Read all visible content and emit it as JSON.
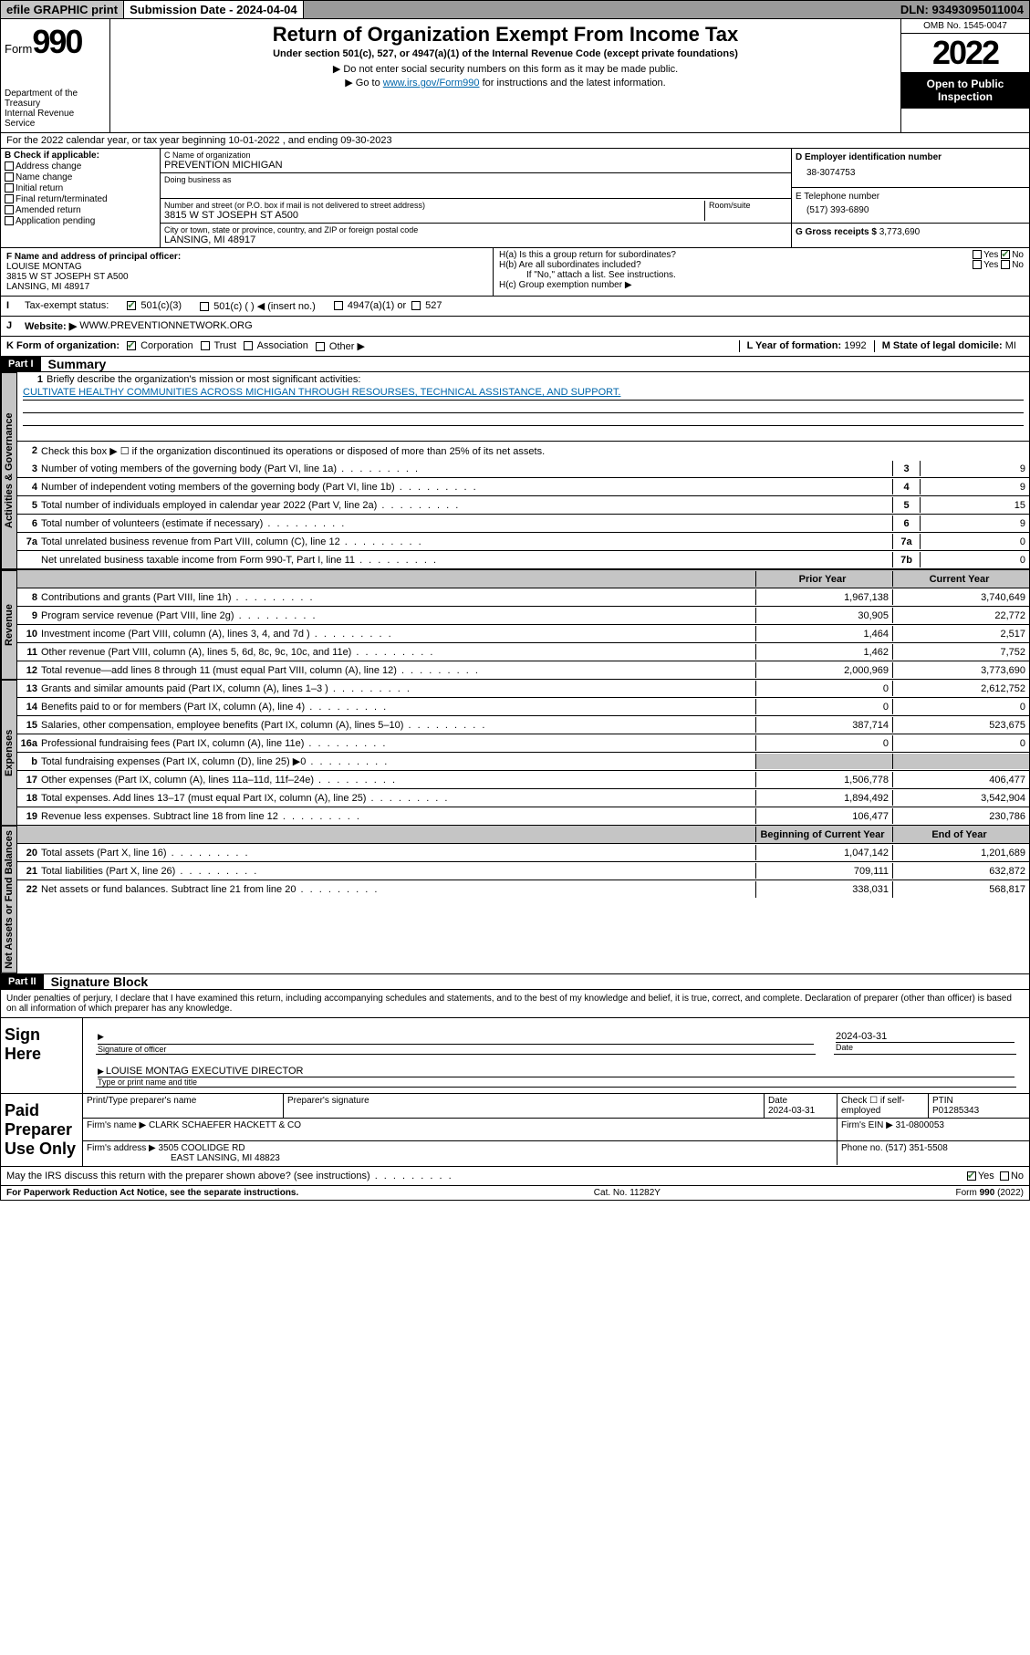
{
  "topbar": {
    "efile": "efile GRAPHIC print",
    "sub_label": "Submission Date - ",
    "sub_date": "2024-04-04",
    "dln_label": "DLN: ",
    "dln": "93493095011004"
  },
  "header": {
    "form_word": "Form",
    "form_num": "990",
    "dept": "Department of the Treasury",
    "irs": "Internal Revenue Service",
    "title": "Return of Organization Exempt From Income Tax",
    "sub1": "Under section 501(c), 527, or 4947(a)(1) of the Internal Revenue Code (except private foundations)",
    "sub2": "▶ Do not enter social security numbers on this form as it may be made public.",
    "sub3_pre": "▶ Go to ",
    "sub3_link": "www.irs.gov/Form990",
    "sub3_post": " for instructions and the latest information.",
    "omb": "OMB No. 1545-0047",
    "year": "2022",
    "open": "Open to Public Inspection"
  },
  "lineA": "For the 2022 calendar year, or tax year beginning 10-01-2022   , and ending 09-30-2023",
  "B": {
    "hdr": "B Check if applicable:",
    "opts": [
      "Address change",
      "Name change",
      "Initial return",
      "Final return/terminated",
      "Amended return",
      "Application pending"
    ]
  },
  "C": {
    "name_lbl": "C Name of organization",
    "name": "PREVENTION MICHIGAN",
    "dba_lbl": "Doing business as",
    "dba": "",
    "street_lbl": "Number and street (or P.O. box if mail is not delivered to street address)",
    "room_lbl": "Room/suite",
    "street": "3815 W ST JOSEPH ST A500",
    "city_lbl": "City or town, state or province, country, and ZIP or foreign postal code",
    "city": "LANSING, MI  48917"
  },
  "D": {
    "lbl": "D Employer identification number",
    "val": "38-3074753"
  },
  "E": {
    "lbl": "E Telephone number",
    "val": "(517) 393-6890"
  },
  "G": {
    "lbl": "G Gross receipts $ ",
    "val": "3,773,690"
  },
  "F": {
    "lbl": "F  Name and address of principal officer:",
    "name": "LOUISE MONTAG",
    "addr1": "3815 W ST JOSEPH ST A500",
    "addr2": "LANSING, MI  48917"
  },
  "H": {
    "a": "H(a)  Is this a group return for subordinates?",
    "b": "H(b)  Are all subordinates included?",
    "b_note": "If \"No,\" attach a list. See instructions.",
    "c": "H(c)  Group exemption number ▶",
    "yes": "Yes",
    "no": "No"
  },
  "I": {
    "lbl": "Tax-exempt status:",
    "opt1": "501(c)(3)",
    "opt2": "501(c) (  ) ◀ (insert no.)",
    "opt3": "4947(a)(1) or",
    "opt4": "527"
  },
  "J": {
    "lbl": "Website: ▶",
    "val": "WWW.PREVENTIONNETWORK.ORG"
  },
  "K": {
    "lbl": "K Form of organization:",
    "opts": [
      "Corporation",
      "Trust",
      "Association",
      "Other ▶"
    ]
  },
  "L": {
    "lbl": "L Year of formation: ",
    "val": "1992"
  },
  "M": {
    "lbl": "M State of legal domicile: ",
    "val": "MI"
  },
  "part1": {
    "tag": "Part I",
    "title": "Summary"
  },
  "tabs": {
    "ag": "Activities & Governance",
    "rev": "Revenue",
    "exp": "Expenses",
    "na": "Net Assets or Fund Balances"
  },
  "s1": {
    "l1_lbl": "Briefly describe the organization's mission or most significant activities:",
    "l1_val": "CULTIVATE HEALTHY COMMUNITIES ACROSS MICHIGAN THROUGH RESOURSES, TECHNICAL ASSISTANCE, AND SUPPORT.",
    "l2": "Check this box ▶ ☐  if the organization discontinued its operations or disposed of more than 25% of its net assets.",
    "lines": [
      {
        "n": "3",
        "t": "Number of voting members of the governing body (Part VI, line 1a)",
        "box": "3",
        "v": "9"
      },
      {
        "n": "4",
        "t": "Number of independent voting members of the governing body (Part VI, line 1b)",
        "box": "4",
        "v": "9"
      },
      {
        "n": "5",
        "t": "Total number of individuals employed in calendar year 2022 (Part V, line 2a)",
        "box": "5",
        "v": "15"
      },
      {
        "n": "6",
        "t": "Total number of volunteers (estimate if necessary)",
        "box": "6",
        "v": "9"
      },
      {
        "n": "7a",
        "t": "Total unrelated business revenue from Part VIII, column (C), line 12",
        "box": "7a",
        "v": "0"
      },
      {
        "n": "",
        "t": "Net unrelated business taxable income from Form 990-T, Part I, line 11",
        "box": "7b",
        "v": "0"
      }
    ]
  },
  "cols": {
    "prior": "Prior Year",
    "curr": "Current Year",
    "begin": "Beginning of Current Year",
    "end": "End of Year"
  },
  "rev": [
    {
      "n": "8",
      "t": "Contributions and grants (Part VIII, line 1h)",
      "p": "1,967,138",
      "c": "3,740,649"
    },
    {
      "n": "9",
      "t": "Program service revenue (Part VIII, line 2g)",
      "p": "30,905",
      "c": "22,772"
    },
    {
      "n": "10",
      "t": "Investment income (Part VIII, column (A), lines 3, 4, and 7d )",
      "p": "1,464",
      "c": "2,517"
    },
    {
      "n": "11",
      "t": "Other revenue (Part VIII, column (A), lines 5, 6d, 8c, 9c, 10c, and 11e)",
      "p": "1,462",
      "c": "7,752"
    },
    {
      "n": "12",
      "t": "Total revenue—add lines 8 through 11 (must equal Part VIII, column (A), line 12)",
      "p": "2,000,969",
      "c": "3,773,690"
    }
  ],
  "exp": [
    {
      "n": "13",
      "t": "Grants and similar amounts paid (Part IX, column (A), lines 1–3 )",
      "p": "0",
      "c": "2,612,752"
    },
    {
      "n": "14",
      "t": "Benefits paid to or for members (Part IX, column (A), line 4)",
      "p": "0",
      "c": "0"
    },
    {
      "n": "15",
      "t": "Salaries, other compensation, employee benefits (Part IX, column (A), lines 5–10)",
      "p": "387,714",
      "c": "523,675"
    },
    {
      "n": "16a",
      "t": "Professional fundraising fees (Part IX, column (A), line 11e)",
      "p": "0",
      "c": "0"
    },
    {
      "n": "b",
      "t": "Total fundraising expenses (Part IX, column (D), line 25) ▶0",
      "p": "",
      "c": "",
      "shade": true
    },
    {
      "n": "17",
      "t": "Other expenses (Part IX, column (A), lines 11a–11d, 11f–24e)",
      "p": "1,506,778",
      "c": "406,477"
    },
    {
      "n": "18",
      "t": "Total expenses. Add lines 13–17 (must equal Part IX, column (A), line 25)",
      "p": "1,894,492",
      "c": "3,542,904"
    },
    {
      "n": "19",
      "t": "Revenue less expenses. Subtract line 18 from line 12",
      "p": "106,477",
      "c": "230,786"
    }
  ],
  "na": [
    {
      "n": "20",
      "t": "Total assets (Part X, line 16)",
      "p": "1,047,142",
      "c": "1,201,689"
    },
    {
      "n": "21",
      "t": "Total liabilities (Part X, line 26)",
      "p": "709,111",
      "c": "632,872"
    },
    {
      "n": "22",
      "t": "Net assets or fund balances. Subtract line 21 from line 20",
      "p": "338,031",
      "c": "568,817"
    }
  ],
  "part2": {
    "tag": "Part II",
    "title": "Signature Block"
  },
  "sigdecl": "Under penalties of perjury, I declare that I have examined this return, including accompanying schedules and statements, and to the best of my knowledge and belief, it is true, correct, and complete. Declaration of preparer (other than officer) is based on all information of which preparer has any knowledge.",
  "sign": {
    "here": "Sign Here",
    "sig_lbl": "Signature of officer",
    "date_lbl": "Date",
    "date": "2024-03-31",
    "name": "LOUISE MONTAG  EXECUTIVE DIRECTOR",
    "name_lbl": "Type or print name and title"
  },
  "paid": {
    "here": "Paid Preparer Use Only",
    "h1": "Print/Type preparer's name",
    "h2": "Preparer's signature",
    "h3": "Date",
    "h3v": "2024-03-31",
    "h4": "Check ☐  if self-employed",
    "h5": "PTIN",
    "h5v": "P01285343",
    "firm_lbl": "Firm's name    ▶",
    "firm": "CLARK SCHAEFER HACKETT & CO",
    "ein_lbl": "Firm's EIN ▶",
    "ein": "31-0800053",
    "addr_lbl": "Firm's address ▶",
    "addr1": "3505 COOLIDGE RD",
    "addr2": "EAST LANSING, MI  48823",
    "ph_lbl": "Phone no. ",
    "ph": "(517) 351-5508"
  },
  "may": {
    "t": "May the IRS discuss this return with the preparer shown above? (see instructions)",
    "yes": "Yes",
    "no": "No"
  },
  "foot": {
    "l": "For Paperwork Reduction Act Notice, see the separate instructions.",
    "c": "Cat. No. 11282Y",
    "r": "Form 990 (2022)"
  }
}
